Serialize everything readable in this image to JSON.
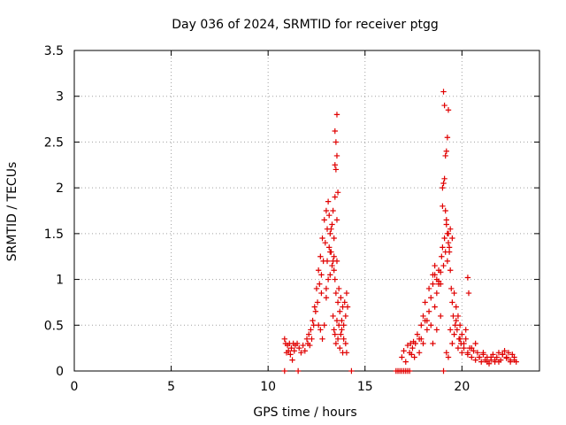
{
  "chart_data": {
    "type": "scatter",
    "title": "Day 036 of 2024, SRMTID for receiver ptgg",
    "xlabel": "GPS time / hours",
    "ylabel": "SRMTID / TECUs",
    "xlim": [
      0,
      24
    ],
    "ylim": [
      0,
      3.5
    ],
    "x_ticks": [
      0,
      5,
      10,
      15,
      20
    ],
    "x_tick_labels": [
      "0",
      "5",
      "10",
      "15",
      "20"
    ],
    "y_ticks": [
      0,
      0.5,
      1,
      1.5,
      2,
      2.5,
      3,
      3.5
    ],
    "y_tick_labels": [
      "0",
      "0.5",
      "1",
      "1.5",
      "2",
      "2.5",
      "3",
      "3.5"
    ],
    "grid": true,
    "marker": "+",
    "series": [
      {
        "name": "SRMTID",
        "color": "#e00000",
        "x": [
          10.85,
          10.9,
          10.95,
          11.0,
          11.05,
          11.1,
          11.15,
          11.2,
          11.25,
          11.3,
          11.35,
          11.4,
          11.5,
          11.6,
          11.7,
          11.8,
          11.9,
          12.0,
          12.05,
          12.1,
          12.15,
          12.2,
          12.25,
          12.3,
          12.35,
          12.4,
          12.45,
          12.5,
          12.55,
          12.6,
          12.65,
          12.7,
          12.75,
          12.8,
          12.85,
          12.9,
          12.95,
          13.0,
          13.05,
          13.1,
          13.15,
          13.2,
          13.25,
          13.3,
          13.35,
          13.4,
          13.45,
          13.5,
          13.55,
          13.6,
          13.65,
          13.7,
          13.75,
          13.8,
          13.85,
          13.9,
          13.95,
          14.0,
          14.05,
          14.1,
          12.8,
          12.9,
          13.0,
          13.1,
          13.2,
          13.3,
          13.35,
          13.4,
          13.45,
          13.5,
          13.55,
          13.6,
          13.65,
          13.7,
          13.75,
          13.8,
          13.85,
          13.9,
          14.0,
          14.05,
          13.05,
          13.15,
          13.25,
          13.35,
          13.45,
          13.55,
          12.7,
          12.6,
          12.75,
          13.0,
          13.2,
          13.4,
          13.5,
          13.45,
          13.55,
          13.5,
          13.45,
          13.55,
          13.4,
          13.6,
          16.9,
          17.0,
          17.1,
          17.2,
          17.3,
          17.35,
          17.4,
          17.45,
          17.5,
          17.55,
          17.6,
          17.7,
          17.8,
          17.9,
          18.0,
          18.1,
          18.2,
          18.3,
          18.4,
          18.5,
          18.6,
          18.7,
          18.8,
          18.9,
          18.95,
          19.0,
          19.05,
          19.1,
          19.15,
          19.2,
          19.25,
          19.3,
          19.35,
          19.4,
          19.45,
          19.5,
          19.55,
          19.6,
          19.65,
          19.7,
          19.75,
          19.8,
          19.85,
          19.9,
          19.95,
          20.0,
          20.1,
          20.2,
          20.3,
          20.4,
          20.5,
          20.6,
          20.7,
          20.8,
          20.9,
          21.0,
          21.1,
          21.2,
          21.3,
          21.4,
          21.5,
          21.6,
          21.7,
          21.8,
          21.9,
          22.0,
          22.1,
          22.2,
          22.3,
          22.4,
          22.5,
          22.6,
          22.7,
          22.8,
          17.8,
          17.9,
          18.0,
          18.1,
          18.2,
          18.3,
          18.4,
          18.5,
          18.6,
          18.7,
          18.8,
          18.9,
          19.2,
          19.3,
          19.4,
          19.5,
          19.6,
          19.7,
          19.8,
          19.9,
          20.0,
          20.1,
          20.2,
          20.3,
          20.5,
          20.7,
          20.9,
          21.1,
          21.3,
          21.5,
          21.7,
          21.9,
          22.1,
          22.3,
          22.5,
          22.7,
          19.0,
          19.05,
          19.1,
          19.15,
          19.2,
          19.25,
          19.3,
          19.1,
          19.05,
          19.0,
          19.15,
          19.2,
          19.25,
          19.3,
          19.35,
          19.4,
          19.5,
          20.3,
          20.35,
          18.6,
          18.5,
          18.8,
          18.9,
          18.7,
          10.85,
          11.55,
          14.3,
          16.6,
          16.7,
          16.8,
          16.9,
          17.0,
          17.1,
          17.2,
          17.3,
          19.05
        ],
        "y": [
          0.35,
          0.3,
          0.2,
          0.28,
          0.22,
          0.3,
          0.18,
          0.25,
          0.12,
          0.3,
          0.22,
          0.28,
          0.3,
          0.25,
          0.2,
          0.28,
          0.22,
          0.35,
          0.3,
          0.4,
          0.28,
          0.45,
          0.35,
          0.55,
          0.5,
          0.7,
          0.65,
          0.9,
          0.75,
          1.1,
          0.95,
          1.25,
          1.05,
          1.45,
          1.2,
          1.65,
          1.4,
          1.75,
          1.55,
          1.85,
          1.7,
          1.5,
          1.3,
          1.6,
          1.2,
          1.45,
          1.0,
          0.85,
          1.2,
          0.75,
          0.9,
          0.65,
          0.8,
          0.55,
          0.7,
          0.5,
          0.75,
          0.6,
          0.85,
          0.7,
          0.35,
          0.5,
          0.8,
          1.0,
          1.3,
          1.15,
          0.6,
          0.45,
          0.4,
          0.3,
          0.55,
          0.35,
          0.5,
          0.25,
          0.4,
          0.45,
          0.2,
          0.35,
          0.3,
          0.2,
          1.2,
          1.35,
          1.55,
          1.75,
          1.9,
          1.65,
          0.45,
          0.5,
          0.85,
          0.9,
          1.05,
          1.1,
          2.2,
          2.25,
          2.35,
          2.5,
          2.62,
          2.8,
          1.25,
          1.95,
          0.15,
          0.22,
          0.1,
          0.28,
          0.2,
          0.3,
          0.18,
          0.25,
          0.32,
          0.15,
          0.3,
          0.4,
          0.35,
          0.5,
          0.6,
          0.75,
          0.55,
          0.9,
          0.8,
          0.95,
          1.05,
          0.85,
          1.1,
          0.95,
          1.25,
          1.35,
          1.15,
          1.45,
          1.3,
          1.6,
          1.2,
          1.5,
          1.35,
          1.1,
          0.9,
          0.75,
          0.6,
          0.85,
          0.5,
          0.7,
          0.45,
          0.6,
          0.35,
          0.5,
          0.3,
          0.4,
          0.25,
          0.35,
          0.18,
          0.25,
          0.15,
          0.22,
          0.12,
          0.2,
          0.15,
          0.1,
          0.18,
          0.12,
          0.15,
          0.08,
          0.12,
          0.18,
          0.1,
          0.15,
          0.2,
          0.12,
          0.18,
          0.22,
          0.15,
          0.2,
          0.12,
          0.18,
          0.15,
          0.1,
          0.2,
          0.35,
          0.3,
          0.55,
          0.45,
          0.65,
          0.5,
          0.3,
          0.7,
          0.45,
          0.95,
          0.6,
          0.2,
          0.15,
          0.45,
          0.3,
          0.4,
          0.55,
          0.25,
          0.35,
          0.2,
          0.3,
          0.45,
          0.2,
          0.25,
          0.3,
          0.15,
          0.2,
          0.1,
          0.15,
          0.12,
          0.1,
          0.18,
          0.14,
          0.1,
          0.12,
          2.0,
          2.05,
          2.1,
          2.35,
          2.4,
          2.55,
          2.85,
          2.9,
          3.05,
          1.8,
          1.75,
          1.65,
          1.5,
          1.4,
          1.3,
          1.55,
          1.45,
          1.02,
          0.85,
          1.15,
          1.05,
          0.98,
          1.08,
          1.0,
          0.0,
          0.0,
          0.0,
          0.0,
          0.0,
          0.0,
          0.0,
          0.0,
          0.0,
          0.0,
          0.0,
          0.0
        ]
      }
    ]
  }
}
